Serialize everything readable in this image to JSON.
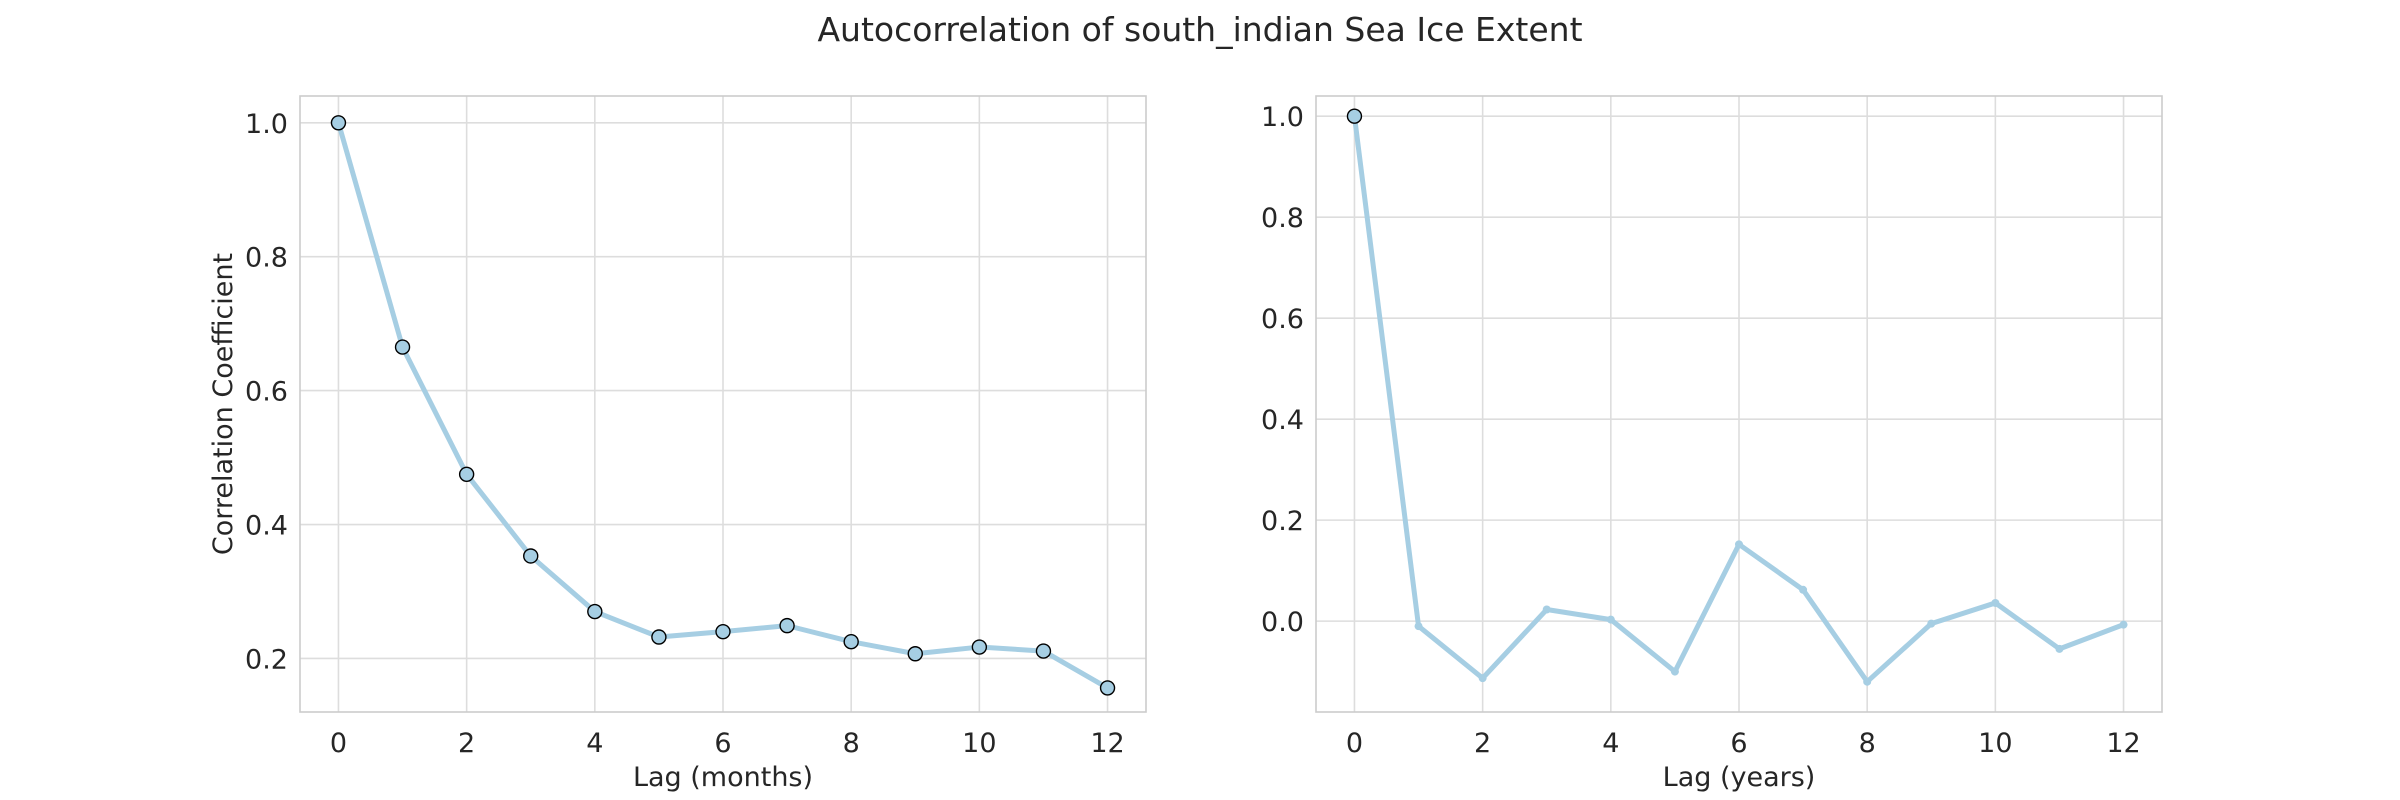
{
  "figure": {
    "title": "Autocorrelation of south_indian Sea Ice Extent"
  },
  "colors": {
    "line": "#a6cee3",
    "marker_edge": "#000000",
    "grid": "#dddddd",
    "frame": "#cccccc",
    "text": "#262626"
  },
  "chart_data": [
    {
      "type": "line",
      "xlabel": "Lag (months)",
      "ylabel": "Correlation Coefficient",
      "xlim": [
        -0.6,
        12.6
      ],
      "ylim": [
        0.12,
        1.04
      ],
      "xticks": [
        0,
        2,
        4,
        6,
        8,
        10,
        12
      ],
      "yticks": [
        0.2,
        0.4,
        0.6,
        0.8,
        1.0
      ],
      "grid": true,
      "markers": "all",
      "series": [
        {
          "x": [
            0,
            1,
            2,
            3,
            4,
            5,
            6,
            7,
            8,
            9,
            10,
            11,
            12
          ],
          "y": [
            1.0,
            0.665,
            0.475,
            0.353,
            0.27,
            0.232,
            0.24,
            0.249,
            0.225,
            0.207,
            0.217,
            0.211,
            0.156
          ]
        }
      ]
    },
    {
      "type": "line",
      "xlabel": "Lag (years)",
      "ylabel": "",
      "xlim": [
        -0.6,
        12.6
      ],
      "ylim": [
        -0.18,
        1.04
      ],
      "xticks": [
        0,
        2,
        4,
        6,
        8,
        10,
        12
      ],
      "yticks": [
        0.0,
        0.2,
        0.4,
        0.6,
        0.8,
        1.0
      ],
      "grid": true,
      "markers": "first",
      "series": [
        {
          "x": [
            0,
            1,
            2,
            3,
            4,
            5,
            6,
            7,
            8,
            9,
            10,
            11,
            12
          ],
          "y": [
            1.0,
            -0.01,
            -0.113,
            0.023,
            0.003,
            -0.1,
            0.152,
            0.062,
            -0.12,
            -0.005,
            0.036,
            -0.055,
            -0.007
          ]
        }
      ]
    }
  ]
}
